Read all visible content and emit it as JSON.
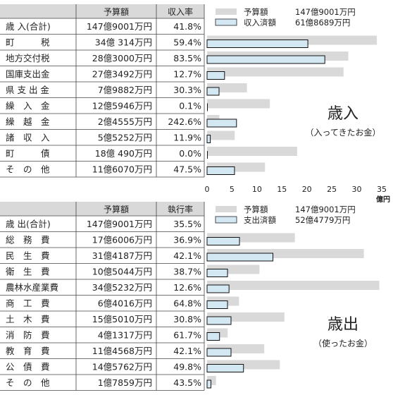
{
  "chart_data": [
    {
      "type": "bar",
      "orientation": "horizontal",
      "section": "revenue",
      "big_label": "歳入",
      "sub_label": "（入ってきたお金）",
      "columns": [
        "",
        "予算額",
        "収入率"
      ],
      "legend": [
        {
          "name": "予算額",
          "amount": "147億9001万円",
          "color": "#d9d9d9"
        },
        {
          "name": "収入済額",
          "amount": "61億8689万円",
          "color": "#d3e8f3"
        }
      ],
      "rows": [
        {
          "label": "歳 入(合計)",
          "amount": "147億9001万円",
          "rate": "41.8%",
          "is_total": true
        },
        {
          "label": "町　　　税",
          "amount": "34億 314万円",
          "rate": "59.4%"
        },
        {
          "label": "地方交付税",
          "amount": "28億3000万円",
          "rate": "83.5%"
        },
        {
          "label": "国庫支出金",
          "amount": "27億3492万円",
          "rate": "12.7%"
        },
        {
          "label": "県 支 出 金",
          "amount": "7億9882万円",
          "rate": "30.3%"
        },
        {
          "label": "繰　入　金",
          "amount": "12億5946万円",
          "rate": "0.1%"
        },
        {
          "label": "繰　越　金",
          "amount": "2億4555万円",
          "rate": "242.6%"
        },
        {
          "label": "諸　収　入",
          "amount": "5億5252万円",
          "rate": "11.9%"
        },
        {
          "label": "町　　　債",
          "amount": "18億 490万円",
          "rate": "0.0%"
        },
        {
          "label": "そ　の　他",
          "amount": "11億6070万円",
          "rate": "47.5%"
        }
      ],
      "series": [
        {
          "name": "予算額",
          "values": [
            34.03,
            28.3,
            27.35,
            7.99,
            12.59,
            2.46,
            5.53,
            18.05,
            11.61
          ]
        },
        {
          "name": "収入済額",
          "values": [
            20.2,
            23.6,
            3.5,
            2.4,
            0.01,
            5.9,
            0.65,
            0.0,
            5.5
          ]
        }
      ],
      "x_ticks": [
        "0",
        "5",
        "10",
        "15",
        "20",
        "25",
        "30",
        "35"
      ],
      "x_unit": "億円",
      "xlim": [
        0,
        35
      ],
      "grid": false
    },
    {
      "type": "bar",
      "orientation": "horizontal",
      "section": "expenditure",
      "big_label": "歳出",
      "sub_label": "（使ったお金）",
      "columns": [
        "",
        "予算額",
        "執行率"
      ],
      "legend": [
        {
          "name": "予算額",
          "amount": "147億9001万円",
          "color": "#d9d9d9"
        },
        {
          "name": "支出済額",
          "amount": "52億4779万円",
          "color": "#d3e8f3"
        }
      ],
      "rows": [
        {
          "label": "歳 出(合計)",
          "amount": "147億9001万円",
          "rate": "35.5%",
          "is_total": true
        },
        {
          "label": "総　務　費",
          "amount": "17億6006万円",
          "rate": "36.9%"
        },
        {
          "label": "民　生　費",
          "amount": "31億4187万円",
          "rate": "42.1%"
        },
        {
          "label": "衛　生　費",
          "amount": "10億5044万円",
          "rate": "38.7%"
        },
        {
          "label": "農林水産業費",
          "amount": "34億5232万円",
          "rate": "12.6%"
        },
        {
          "label": "商　工　費",
          "amount": "6億4016万円",
          "rate": "64.8%"
        },
        {
          "label": "土　木　費",
          "amount": "15億5010万円",
          "rate": "30.8%"
        },
        {
          "label": "消　防　費",
          "amount": "4億1317万円",
          "rate": "61.7%"
        },
        {
          "label": "教　育　費",
          "amount": "11億4568万円",
          "rate": "42.1%"
        },
        {
          "label": "公　債　費",
          "amount": "14億5762万円",
          "rate": "49.8%"
        },
        {
          "label": "そ　の　他",
          "amount": "1億7859万円",
          "rate": "43.5%"
        }
      ],
      "series": [
        {
          "name": "予算額",
          "values": [
            17.6,
            31.42,
            10.5,
            34.52,
            6.4,
            15.5,
            4.13,
            11.46,
            14.58,
            1.79
          ]
        },
        {
          "name": "支出済額",
          "values": [
            6.5,
            13.2,
            4.1,
            4.4,
            4.1,
            4.8,
            2.5,
            4.8,
            7.3,
            0.78
          ]
        }
      ],
      "xlim": [
        0,
        35
      ],
      "grid": false
    }
  ]
}
